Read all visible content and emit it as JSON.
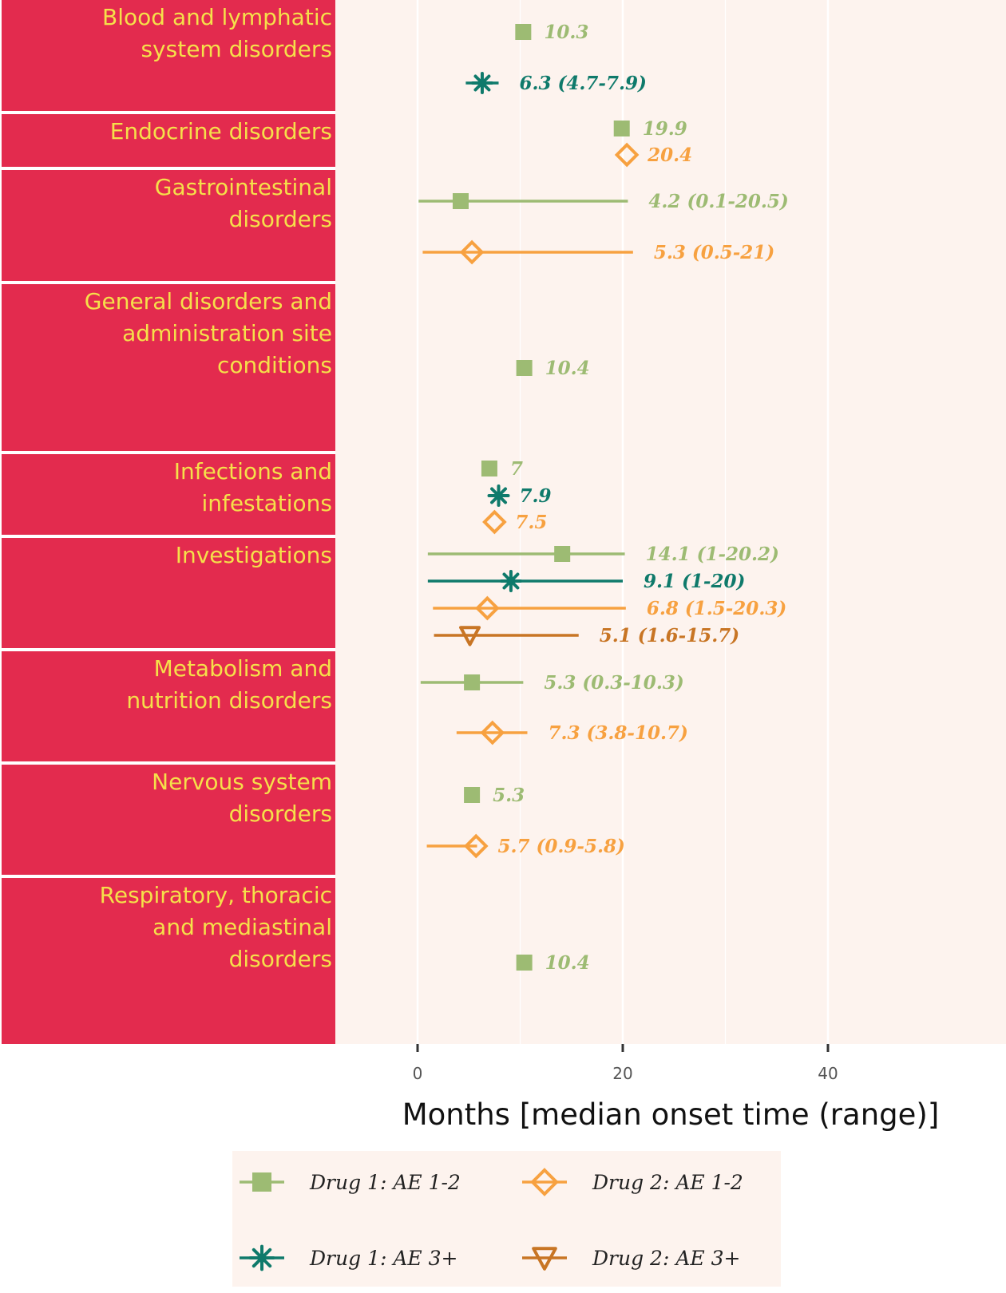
{
  "chart_data": {
    "type": "scatter",
    "xlabel": "Months [median onset time (range)]",
    "xlim": [
      -10,
      57
    ],
    "x_ticks": [
      0,
      20,
      40
    ],
    "x_tick_labels": [
      "0",
      "20",
      "40"
    ],
    "grid": true,
    "legend_position": "bottom",
    "colors": {
      "panel_bg": "#fdf3ee",
      "strip_bg": "#e32b4e",
      "strip_text": "#f5e04a",
      "grid": "#ffffff"
    },
    "series": [
      {
        "name": "Drug 1: AE 1-2",
        "color": "#9dbb73",
        "marker": "square"
      },
      {
        "name": "Drug 2: AE 1-2",
        "color": "#f7a140",
        "marker": "diamond"
      },
      {
        "name": "Drug 1: AE 3+",
        "color": "#0f7a6b",
        "marker": "asterisk"
      },
      {
        "name": "Drug 2: AE 3+",
        "color": "#c87524",
        "marker": "triangle-down"
      }
    ],
    "categories": [
      {
        "label": "Blood and lymphatic system disorders",
        "lines": [
          "Blood and lymphatic",
          "system disorders"
        ],
        "points": [
          {
            "series": 0,
            "median": 10.3,
            "label": "10.3"
          },
          {
            "series": 2,
            "median": 6.3,
            "low": 4.7,
            "high": 7.9,
            "label": "6.3 (4.7-7.9)"
          }
        ]
      },
      {
        "label": "Endocrine disorders",
        "lines": [
          "Endocrine disorders"
        ],
        "points": [
          {
            "series": 0,
            "median": 19.9,
            "label": "19.9"
          },
          {
            "series": 1,
            "median": 20.4,
            "label": "20.4"
          }
        ]
      },
      {
        "label": "Gastrointestinal disorders",
        "lines": [
          "Gastrointestinal",
          "disorders"
        ],
        "points": [
          {
            "series": 0,
            "median": 4.2,
            "low": 0.1,
            "high": 20.5,
            "label": "4.2 (0.1-20.5)"
          },
          {
            "series": 1,
            "median": 5.3,
            "low": 0.5,
            "high": 21,
            "label": "5.3 (0.5-21)"
          }
        ]
      },
      {
        "label": "General disorders and administration site conditions",
        "lines": [
          "General disorders and",
          "administration site",
          "conditions"
        ],
        "points": [
          {
            "series": 0,
            "median": 10.4,
            "label": "10.4"
          }
        ]
      },
      {
        "label": "Infections and infestations",
        "lines": [
          "Infections and",
          "infestations"
        ],
        "points": [
          {
            "series": 0,
            "median": 7,
            "label": "7"
          },
          {
            "series": 2,
            "median": 7.9,
            "label": "7.9"
          },
          {
            "series": 1,
            "median": 7.5,
            "label": "7.5"
          }
        ]
      },
      {
        "label": "Investigations",
        "lines": [
          "Investigations"
        ],
        "points": [
          {
            "series": 0,
            "median": 14.1,
            "low": 1,
            "high": 20.2,
            "label": "14.1 (1-20.2)"
          },
          {
            "series": 2,
            "median": 9.1,
            "low": 1,
            "high": 20,
            "label": "9.1 (1-20)"
          },
          {
            "series": 1,
            "median": 6.8,
            "low": 1.5,
            "high": 20.3,
            "label": "6.8 (1.5-20.3)"
          },
          {
            "series": 3,
            "median": 5.1,
            "low": 1.6,
            "high": 15.7,
            "label": "5.1 (1.6-15.7)"
          }
        ]
      },
      {
        "label": "Metabolism and nutrition disorders",
        "lines": [
          "Metabolism and",
          "nutrition disorders"
        ],
        "points": [
          {
            "series": 0,
            "median": 5.3,
            "low": 0.3,
            "high": 10.3,
            "label": "5.3 (0.3-10.3)"
          },
          {
            "series": 1,
            "median": 7.3,
            "low": 3.8,
            "high": 10.7,
            "label": "7.3 (3.8-10.7)"
          }
        ]
      },
      {
        "label": "Nervous system disorders",
        "lines": [
          "Nervous system",
          "disorders"
        ],
        "points": [
          {
            "series": 0,
            "median": 5.3,
            "label": "5.3"
          },
          {
            "series": 1,
            "median": 5.7,
            "low": 0.9,
            "high": 5.8,
            "label": "5.7 (0.9-5.8)"
          }
        ]
      },
      {
        "label": "Respiratory, thoracic and mediastinal disorders",
        "lines": [
          "Respiratory, thoracic",
          "and mediastinal",
          "disorders"
        ],
        "points": [
          {
            "series": 0,
            "median": 10.4,
            "label": "10.4"
          }
        ]
      }
    ]
  }
}
